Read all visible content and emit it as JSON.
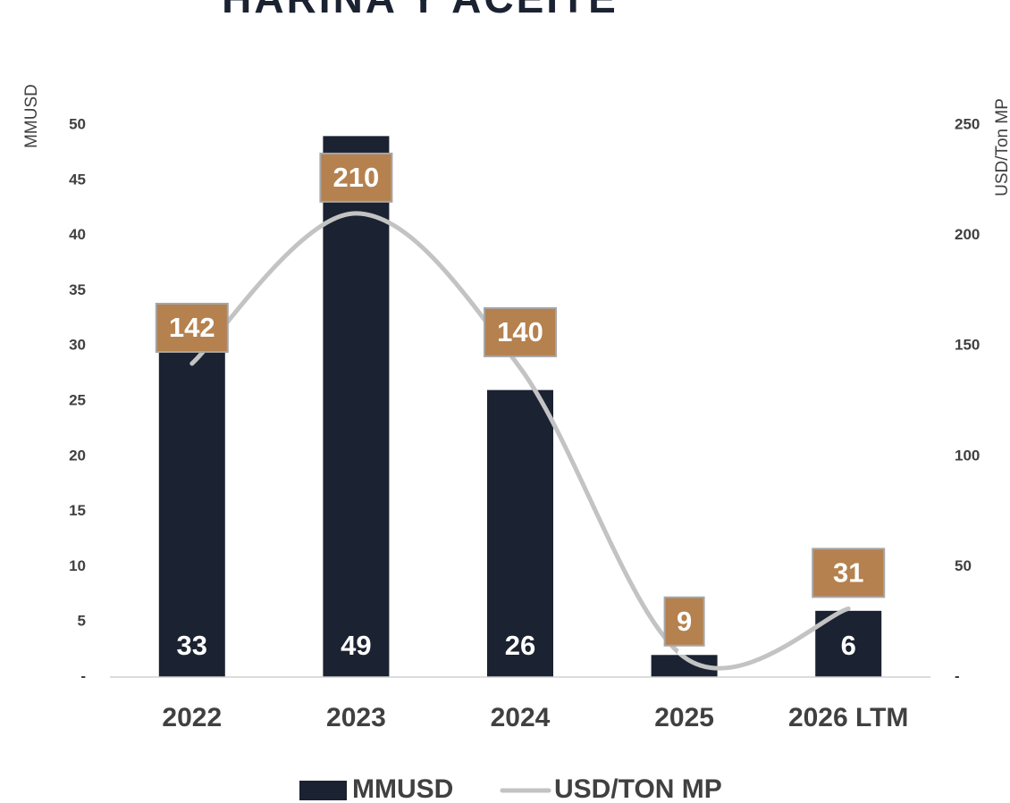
{
  "chart_data": {
    "type": "bar-line",
    "title": "HARINA Y ACEITE",
    "y_label": "MMUSD",
    "y2_label": "USD/Ton MP",
    "categories": [
      "2022",
      "2023",
      "2024",
      "2025",
      "2026 LTM"
    ],
    "series": [
      {
        "name": "MMUSD",
        "type": "bar",
        "color": "#1b2231",
        "values": [
          33,
          49,
          26,
          2,
          6
        ]
      },
      {
        "name": "USD/TON MP",
        "type": "line",
        "axis": "y2",
        "smooth": true,
        "color": "#c3c3c3",
        "label_color": "#b5814e",
        "values": [
          142,
          210,
          140,
          9,
          31
        ]
      }
    ],
    "ylim": [
      0,
      50
    ],
    "yticks": [
      {
        "value": 0,
        "label": "-"
      },
      5,
      10,
      15,
      20,
      25,
      30,
      35,
      40,
      45,
      50
    ],
    "y2lim": [
      0,
      250
    ],
    "y2ticks": [
      {
        "value": 0,
        "label": "-"
      },
      50,
      100,
      150,
      200,
      250
    ],
    "legend": "bottom"
  }
}
